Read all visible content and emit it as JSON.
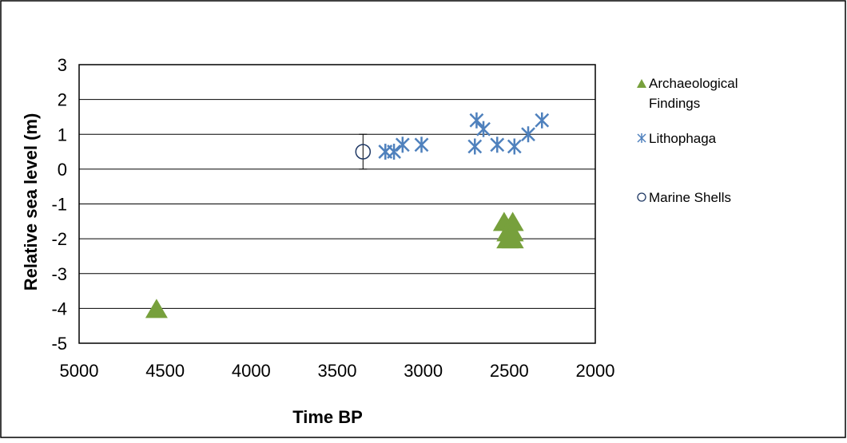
{
  "chart_data": {
    "type": "scatter",
    "title": "",
    "xlabel": "Time BP",
    "ylabel": "Relative sea level (m)",
    "x_reversed": true,
    "xlim": [
      5000,
      2000
    ],
    "ylim": [
      -5,
      3
    ],
    "x_ticks": [
      5000,
      4500,
      4000,
      3500,
      3000,
      2500,
      2000
    ],
    "y_ticks": [
      3,
      2,
      1,
      0,
      -1,
      -2,
      -3,
      -4,
      -5
    ],
    "grid": "horizontal",
    "legend_position": "right",
    "series": [
      {
        "name": "Archaeological Findings",
        "marker": "triangle",
        "color": "#77A03C",
        "points": [
          {
            "x": 4550,
            "y": -4.0
          },
          {
            "x": 2530,
            "y": -1.5
          },
          {
            "x": 2480,
            "y": -1.5
          },
          {
            "x": 2510,
            "y": -1.8
          },
          {
            "x": 2480,
            "y": -1.8
          },
          {
            "x": 2510,
            "y": -2.0
          },
          {
            "x": 2480,
            "y": -2.0
          }
        ]
      },
      {
        "name": "Lithophaga",
        "marker": "asterisk",
        "color": "#4F81BD",
        "points": [
          {
            "x": 3220,
            "y": 0.5
          },
          {
            "x": 3170,
            "y": 0.5
          },
          {
            "x": 3120,
            "y": 0.7
          },
          {
            "x": 3010,
            "y": 0.7
          },
          {
            "x": 2690,
            "y": 1.4
          },
          {
            "x": 2650,
            "y": 1.15
          },
          {
            "x": 2700,
            "y": 0.65
          },
          {
            "x": 2570,
            "y": 0.7
          },
          {
            "x": 2470,
            "y": 0.65
          },
          {
            "x": 2390,
            "y": 1.0
          },
          {
            "x": 2310,
            "y": 1.4
          }
        ]
      },
      {
        "name": "Marine Shells",
        "marker": "circle",
        "color": "#1F3864",
        "points": [
          {
            "x": 3350,
            "y": 0.5,
            "y_err_low": 0.5,
            "y_err_high": 0.5
          }
        ]
      }
    ],
    "legend": {
      "entries": [
        "Archaeological\nFindings",
        "Lithophaga",
        "Marine Shells"
      ],
      "line1": "Archaeological",
      "line2": "Findings",
      "lithophaga": "Lithophaga",
      "marine": "Marine Shells"
    }
  }
}
